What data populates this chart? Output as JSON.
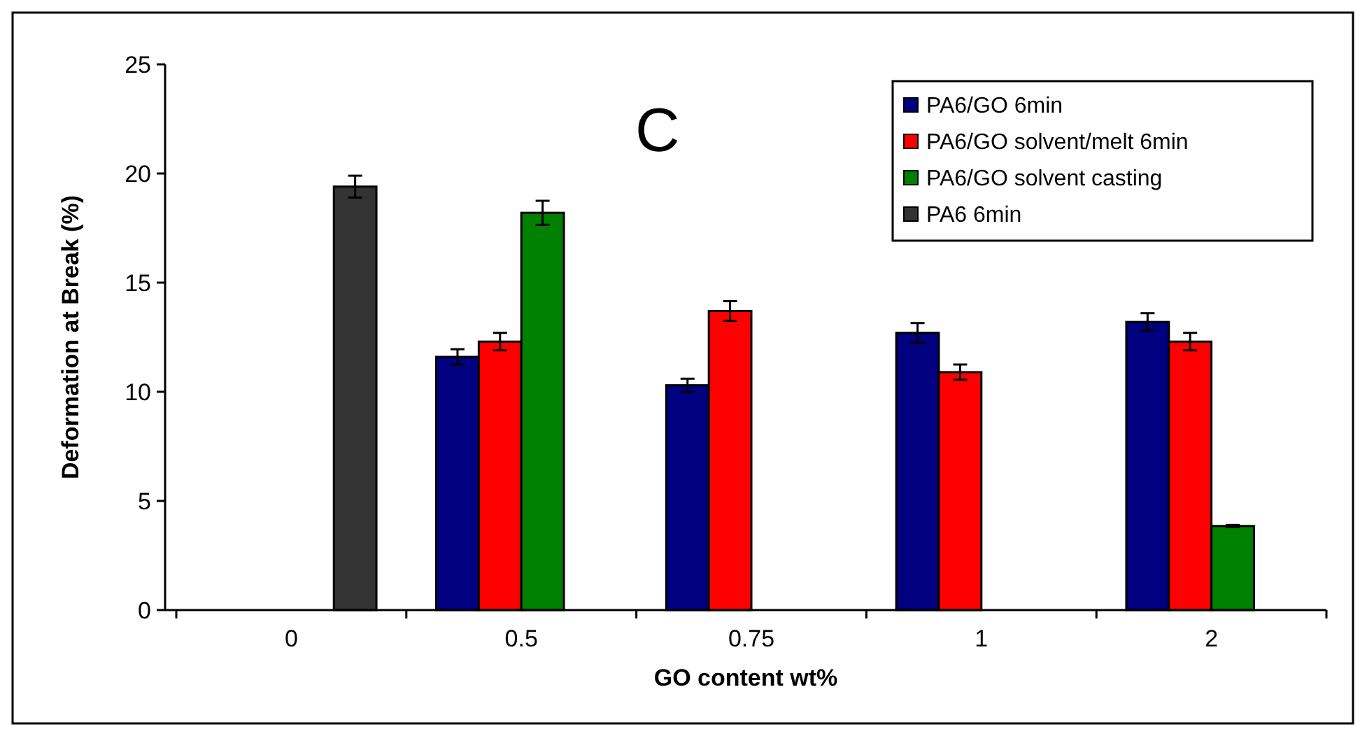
{
  "chart_data": {
    "type": "bar",
    "title": "C",
    "xlabel": "GO content wt%",
    "ylabel": "Deformation at Break (%)",
    "categories": [
      "0",
      "0.5",
      "0.75",
      "1",
      "2"
    ],
    "series": [
      {
        "name": "PA6/GO 6min",
        "color": "#000080",
        "values": [
          null,
          11.6,
          10.3,
          12.7,
          13.2
        ],
        "errors": [
          null,
          0.35,
          0.3,
          0.45,
          0.4
        ]
      },
      {
        "name": "PA6/GO solvent/melt 6min",
        "color": "#ff0000",
        "values": [
          null,
          12.3,
          13.7,
          10.9,
          12.3
        ],
        "errors": [
          null,
          0.4,
          0.45,
          0.35,
          0.4
        ]
      },
      {
        "name": "PA6/GO solvent casting",
        "color": "#008000",
        "values": [
          null,
          18.2,
          null,
          null,
          3.85
        ],
        "errors": [
          null,
          0.55,
          null,
          null,
          0.05
        ]
      },
      {
        "name": "PA6 6min",
        "color": "#333333",
        "values": [
          19.4,
          null,
          null,
          null,
          null
        ],
        "errors": [
          0.5,
          null,
          null,
          null,
          null
        ]
      }
    ],
    "ylim": [
      0,
      25
    ],
    "yticks": [
      0,
      5,
      10,
      15,
      20,
      25
    ],
    "grid": false,
    "legend": "top right"
  }
}
